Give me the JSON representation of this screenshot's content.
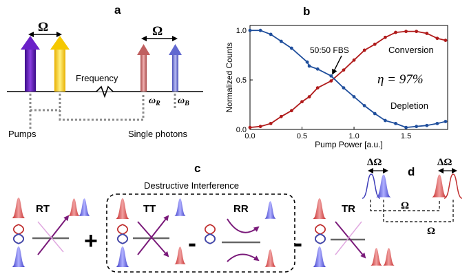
{
  "panels": {
    "a": {
      "label": "a",
      "omega_left": "Ω",
      "omega_right": "Ω",
      "frequency_label": "Frequency",
      "omega_r": "ωR",
      "omega_b": "ωB",
      "pumps_label": "Pumps",
      "single_photons_label": "Single photons"
    },
    "b": {
      "label": "b"
    },
    "c": {
      "label": "c",
      "interference_label": "Destructive Interference",
      "terms": [
        "RT",
        "TT",
        "RR",
        "TR"
      ],
      "operators": [
        "+",
        "-",
        "-"
      ]
    },
    "d": {
      "label": "d",
      "delta_omega_left": "ΔΩ",
      "delta_omega_right": "ΔΩ",
      "omega_top": "Ω",
      "omega_bottom": "Ω"
    }
  },
  "chart_data": {
    "type": "line",
    "title": "",
    "xlabel": "Pump Power [a.u.]",
    "ylabel": "Normalized Counts",
    "xlim": [
      0,
      1.9
    ],
    "ylim": [
      0,
      1.05
    ],
    "xticks": [
      "0.0",
      "0.5",
      "1.0",
      "1.5"
    ],
    "yticks": [
      "0.0",
      "0.5",
      "1.0"
    ],
    "grid": false,
    "annotations": [
      "50:50 FBS",
      "Conversion",
      "Depletion",
      "η = 97%"
    ],
    "series": [
      {
        "name": "Conversion",
        "color": "#b01a1a",
        "points": [
          [
            0.0,
            0.02
          ],
          [
            0.1,
            0.03
          ],
          [
            0.2,
            0.06
          ],
          [
            0.3,
            0.13
          ],
          [
            0.4,
            0.19
          ],
          [
            0.5,
            0.28
          ],
          [
            0.57,
            0.33
          ],
          [
            0.65,
            0.42
          ],
          [
            0.78,
            0.49
          ],
          [
            0.9,
            0.6
          ],
          [
            1.0,
            0.7
          ],
          [
            1.1,
            0.8
          ],
          [
            1.2,
            0.86
          ],
          [
            1.3,
            0.93
          ],
          [
            1.4,
            0.98
          ],
          [
            1.5,
            0.99
          ],
          [
            1.6,
            0.99
          ],
          [
            1.7,
            0.97
          ],
          [
            1.8,
            0.92
          ],
          [
            1.88,
            0.9
          ]
        ]
      },
      {
        "name": "Depletion",
        "color": "#1f4e9c",
        "points": [
          [
            0.0,
            1.0
          ],
          [
            0.1,
            1.0
          ],
          [
            0.2,
            0.96
          ],
          [
            0.3,
            0.89
          ],
          [
            0.4,
            0.82
          ],
          [
            0.55,
            0.68
          ],
          [
            0.57,
            0.64
          ],
          [
            0.65,
            0.61
          ],
          [
            0.78,
            0.54
          ],
          [
            0.9,
            0.42
          ],
          [
            1.0,
            0.33
          ],
          [
            1.1,
            0.24
          ],
          [
            1.2,
            0.16
          ],
          [
            1.3,
            0.09
          ],
          [
            1.4,
            0.06
          ],
          [
            1.5,
            0.02
          ],
          [
            1.6,
            0.03
          ],
          [
            1.7,
            0.04
          ],
          [
            1.8,
            0.06
          ],
          [
            1.88,
            0.08
          ]
        ]
      }
    ]
  }
}
